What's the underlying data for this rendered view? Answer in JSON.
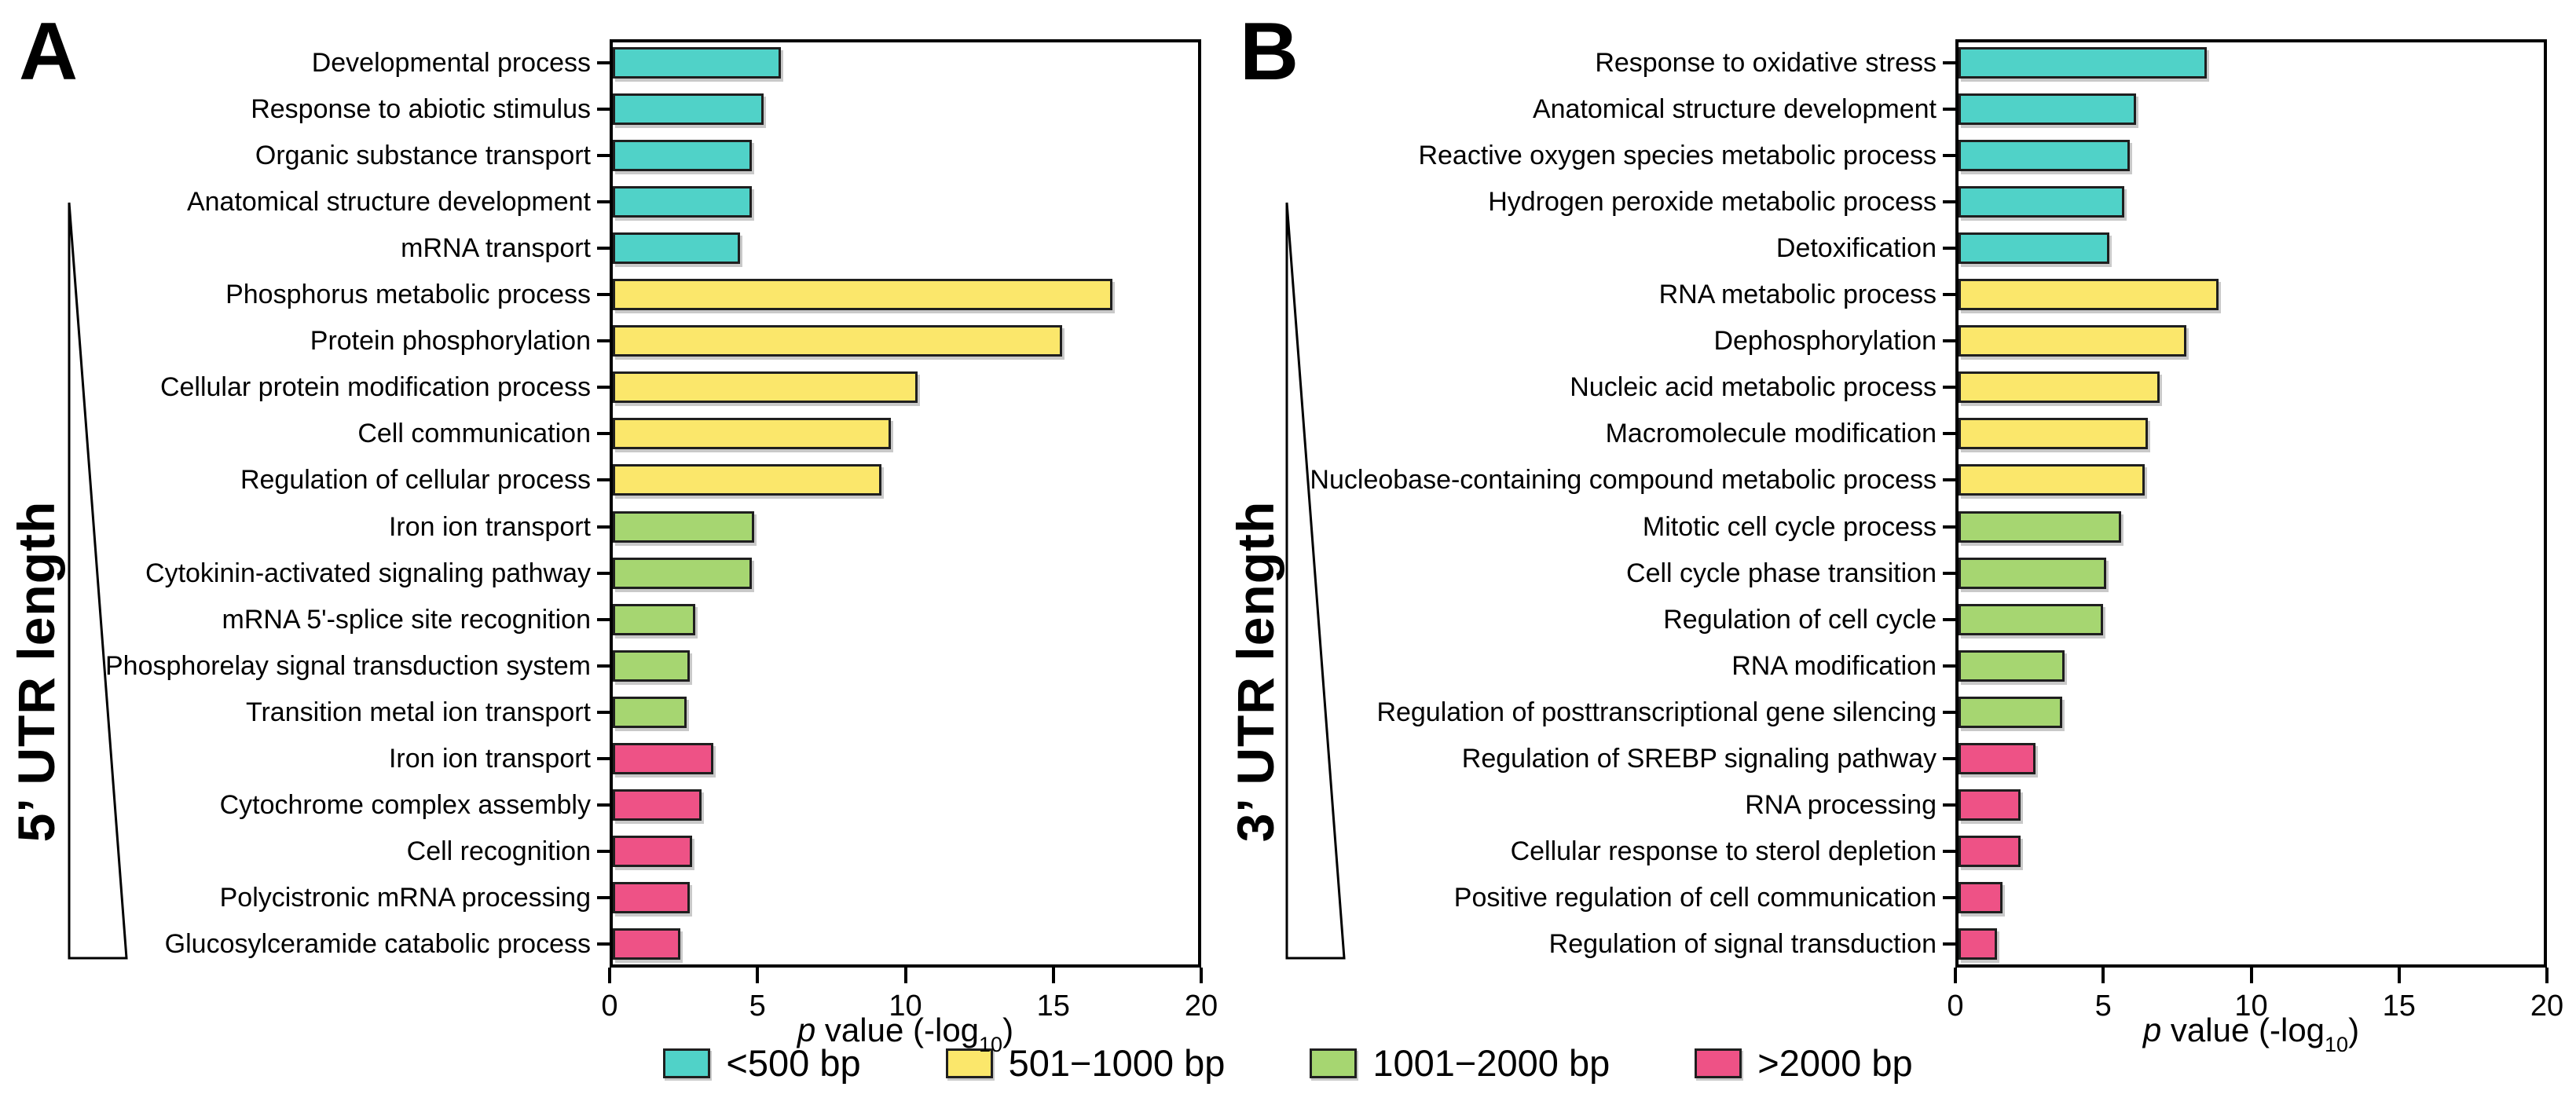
{
  "chart_data": [
    {
      "type": "bar",
      "orientation": "horizontal",
      "panel_label": "A",
      "y_axis_title": "5’ UTR length",
      "xlabel": {
        "italic": "p",
        "text": " value (-log",
        "sub": "10",
        "close": ")"
      },
      "xlim": [
        0,
        20
      ],
      "xticks": [
        0,
        5,
        10,
        15,
        20
      ],
      "grid": false,
      "categories": [
        "Developmental process",
        "Response to abiotic stimulus",
        "Organic substance transport",
        "Anatomical structure development",
        "mRNA transport",
        "Phosphorus metabolic process",
        "Protein phosphorylation",
        "Cellular protein modification process",
        "Cell communication",
        "Regulation of cellular process",
        "Iron ion transport",
        "Cytokinin-activated signaling pathway",
        "mRNA 5'-splice site recognition",
        "Phosphorelay signal transduction system",
        "Transition metal ion transport",
        "Iron ion transport",
        "Cytochrome complex assembly",
        "Cell recognition",
        "Polycistronic mRNA processing",
        "Glucosylceramide catabolic process"
      ],
      "values": [
        5.8,
        5.2,
        4.8,
        4.8,
        4.4,
        17.0,
        15.3,
        10.4,
        9.5,
        9.2,
        4.9,
        4.8,
        2.9,
        2.7,
        2.6,
        3.5,
        3.1,
        2.8,
        2.7,
        2.4
      ],
      "groups": [
        0,
        0,
        0,
        0,
        0,
        1,
        1,
        1,
        1,
        1,
        2,
        2,
        2,
        2,
        2,
        3,
        3,
        3,
        3,
        3
      ]
    },
    {
      "type": "bar",
      "orientation": "horizontal",
      "panel_label": "B",
      "y_axis_title": "3’ UTR length",
      "xlabel": {
        "italic": "p",
        "text": " value (-log",
        "sub": "10",
        "close": ")"
      },
      "xlim": [
        0,
        20
      ],
      "xticks": [
        0,
        5,
        10,
        15,
        20
      ],
      "grid": false,
      "categories": [
        "Response to oxidative stress",
        "Anatomical structure development",
        "Reactive oxygen species metabolic process",
        "Hydrogen peroxide metabolic process",
        "Detoxification",
        "RNA metabolic process",
        "Dephosphorylation",
        "Nucleic acid metabolic process",
        "Macromolecule modification",
        "Nucleobase-containing compound metabolic process",
        "Mitotic cell cycle process",
        "Cell cycle phase transition",
        "Regulation of cell cycle",
        "RNA modification",
        "Regulation of posttranscriptional gene silencing",
        "Regulation of SREBP signaling pathway",
        "RNA processing",
        "Cellular response to sterol depletion",
        "Positive regulation of cell communication",
        "Regulation of signal transduction"
      ],
      "values": [
        8.5,
        6.1,
        5.9,
        5.7,
        5.2,
        8.9,
        7.8,
        6.9,
        6.5,
        6.4,
        5.6,
        5.1,
        5.0,
        3.7,
        3.6,
        2.7,
        2.2,
        2.2,
        1.6,
        1.4
      ],
      "groups": [
        0,
        0,
        0,
        0,
        0,
        1,
        1,
        1,
        1,
        1,
        2,
        2,
        2,
        2,
        2,
        3,
        3,
        3,
        3,
        3
      ]
    }
  ],
  "legend": {
    "entries": [
      {
        "label": "<500 bp",
        "color": "#50d2c8"
      },
      {
        "label": "501−1000 bp",
        "color": "#fbe76b"
      },
      {
        "label": "1001−2000 bp",
        "color": "#a6d671"
      },
      {
        "label": ">2000 bp",
        "color": "#ee5286"
      }
    ]
  },
  "style": {
    "bar_border": "#1f1f1f",
    "frame_color": "#000000",
    "background": "#ffffff"
  }
}
